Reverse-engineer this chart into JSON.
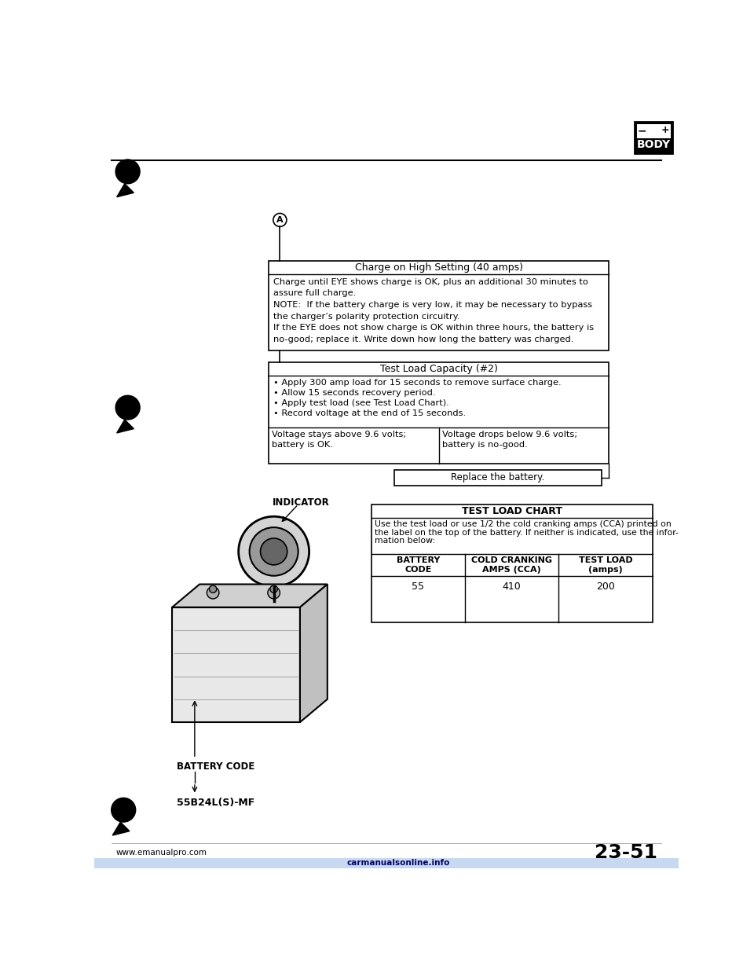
{
  "bg_color": "#ffffff",
  "text_color": "#000000",
  "page_number": "23-51",
  "website": "www.emanualpro.com",
  "carmanuals": "carmanualsonline.info",
  "body_label": "BODY",
  "charge_box": {
    "title": "Charge on High Setting (40 amps)",
    "body_lines": [
      "Charge until EYE shows charge is OK, plus an additional 30 minutes to",
      "assure full charge.",
      "NOTE:  If the battery charge is very low, it may be necessary to bypass",
      "the charger’s polarity protection circuitry.",
      "If the EYE does not show charge is OK within three hours, the battery is",
      "no-good; replace it. Write down how long the battery was charged."
    ]
  },
  "test_load_box": {
    "title": "Test Load Capacity (#2)",
    "bullets": [
      "• Apply 300 amp load for 15 seconds to remove surface charge.",
      "• Allow 15 seconds recovery period.",
      "• Apply test load (see Test Load Chart).",
      "• Record voltage at the end of 15 seconds."
    ],
    "left_cell": [
      "Voltage stays above 9.6 volts;",
      "battery is OK."
    ],
    "right_cell": [
      "Voltage drops below 9.6 volts;",
      "battery is no-good."
    ]
  },
  "replace_box": "Replace the battery.",
  "indicator_label": "INDICATOR",
  "test_load_chart": {
    "title": "TEST LOAD CHART",
    "desc_lines": [
      "Use the test load or use 1/2 the cold cranking amps (CCA) printed on",
      "the label on the top of the battery. If neither is indicated, use the infor-",
      "mation below:"
    ],
    "col1_hdr": [
      "BATTERY",
      "CODE"
    ],
    "col2_hdr": [
      "COLD CRANKING",
      "AMPS (CCA)"
    ],
    "col3_hdr": [
      "TEST LOAD",
      "(amps)"
    ],
    "row": [
      "55",
      "410",
      "200"
    ]
  },
  "battery_code_label": "BATTERY CODE",
  "battery_code_value": "55B24L(S)-MF"
}
